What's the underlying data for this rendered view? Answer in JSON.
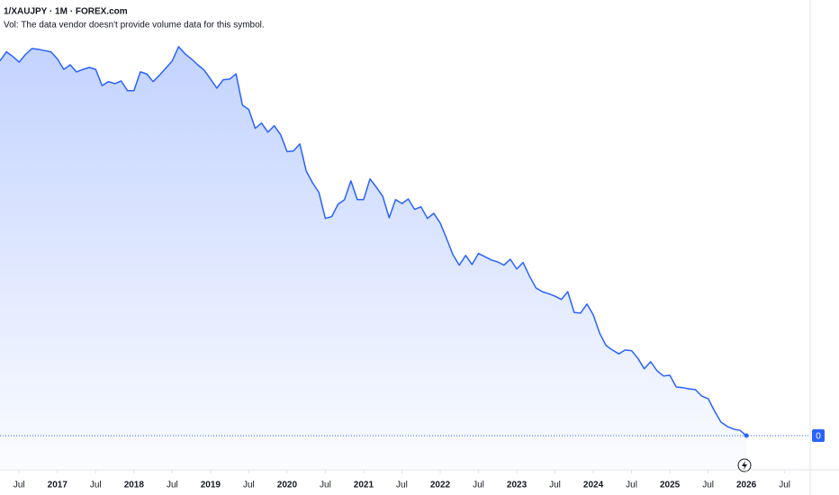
{
  "chart_data": {
    "type": "area",
    "title": "1/XAUJPY · 1M · FOREX.com",
    "subtitle": "Vol: The data vendor doesn't provide volume data for this symbol.",
    "color": "#2962ff",
    "x": [
      "2016-04",
      "2016-05",
      "2016-06",
      "2016-07",
      "2016-08",
      "2016-09",
      "2016-10",
      "2016-11",
      "2016-12",
      "2017-01",
      "2017-02",
      "2017-03",
      "2017-04",
      "2017-05",
      "2017-06",
      "2017-07",
      "2017-08",
      "2017-09",
      "2017-10",
      "2017-11",
      "2017-12",
      "2018-01",
      "2018-02",
      "2018-03",
      "2018-04",
      "2018-05",
      "2018-06",
      "2018-07",
      "2018-08",
      "2018-09",
      "2018-10",
      "2018-11",
      "2018-12",
      "2019-01",
      "2019-02",
      "2019-03",
      "2019-04",
      "2019-05",
      "2019-06",
      "2019-07",
      "2019-08",
      "2019-09",
      "2019-10",
      "2019-11",
      "2019-12",
      "2020-01",
      "2020-02",
      "2020-03",
      "2020-04",
      "2020-05",
      "2020-06",
      "2020-07",
      "2020-08",
      "2020-09",
      "2020-10",
      "2020-11",
      "2020-12",
      "2021-01",
      "2021-02",
      "2021-03",
      "2021-04",
      "2021-05",
      "2021-06",
      "2021-07",
      "2021-08",
      "2021-09",
      "2021-10",
      "2021-11",
      "2021-12",
      "2022-01",
      "2022-02",
      "2022-03",
      "2022-04",
      "2022-05",
      "2022-06",
      "2022-07",
      "2022-08",
      "2022-09",
      "2022-10",
      "2022-11",
      "2022-12",
      "2023-01",
      "2023-02",
      "2023-03",
      "2023-04",
      "2023-05",
      "2023-06",
      "2023-07",
      "2023-08",
      "2023-09",
      "2023-10",
      "2023-11",
      "2023-12",
      "2024-01",
      "2024-02",
      "2024-03",
      "2024-04",
      "2024-05",
      "2024-06",
      "2024-07",
      "2024-08",
      "2024-09",
      "2024-10",
      "2024-11",
      "2024-12",
      "2025-01",
      "2025-02",
      "2025-03",
      "2025-04",
      "2025-05",
      "2025-06",
      "2025-07",
      "2025-08",
      "2025-09",
      "2025-10",
      "2025-11",
      "2025-12",
      "2026-01"
    ],
    "values": [
      7.28e-06,
      7.42e-06,
      7.35e-06,
      7.26e-06,
      7.38e-06,
      7.47e-06,
      7.46e-06,
      7.44e-06,
      7.42e-06,
      7.31e-06,
      7.15e-06,
      7.22e-06,
      7.11e-06,
      7.15e-06,
      7.18e-06,
      7.15e-06,
      6.9e-06,
      6.96e-06,
      6.93e-06,
      6.97e-06,
      6.82e-06,
      6.82e-06,
      7.11e-06,
      7.08e-06,
      6.96e-06,
      7.06e-06,
      7.17e-06,
      7.28e-06,
      7.5e-06,
      7.39e-06,
      7.31e-06,
      7.22e-06,
      7.14e-06,
      7e-06,
      6.86e-06,
      6.99e-06,
      7e-06,
      7.08e-06,
      6.6e-06,
      6.53e-06,
      6.24e-06,
      6.32e-06,
      6.18e-06,
      6.28e-06,
      6.14e-06,
      5.88e-06,
      5.89e-06,
      6e-06,
      5.58e-06,
      5.4e-06,
      5.25e-06,
      4.85e-06,
      4.88e-06,
      5.07e-06,
      5.14e-06,
      5.43e-06,
      5.14e-06,
      5.14e-06,
      5.46e-06,
      5.33e-06,
      5.19e-06,
      4.86e-06,
      5.14e-06,
      5.08e-06,
      5.15e-06,
      4.99e-06,
      5.03e-06,
      4.85e-06,
      4.93e-06,
      4.78e-06,
      4.54e-06,
      4.29e-06,
      4.13e-06,
      4.28e-06,
      4.14e-06,
      4.31e-06,
      4.26e-06,
      4.21e-06,
      4.18e-06,
      4.13e-06,
      4.22e-06,
      4.07e-06,
      4.17e-06,
      3.96e-06,
      3.78e-06,
      3.72e-06,
      3.69e-06,
      3.65e-06,
      3.6e-06,
      3.72e-06,
      3.4e-06,
      3.39e-06,
      3.53e-06,
      3.36e-06,
      3.08e-06,
      2.89e-06,
      2.82e-06,
      2.76e-06,
      2.82e-06,
      2.81e-06,
      2.69e-06,
      2.53e-06,
      2.64e-06,
      2.5e-06,
      2.42e-06,
      2.43e-06,
      2.25e-06,
      2.24e-06,
      2.22e-06,
      2.21e-06,
      2.11e-06,
      2.07e-06,
      1.88e-06,
      1.71e-06,
      1.64e-06,
      1.6e-06,
      1.58e-06,
      1.5e-06
    ],
    "xlim": [
      "2016-04",
      "2026-11"
    ],
    "xticks": [
      {
        "value": "2016-07",
        "label": "Jul"
      },
      {
        "value": "2017-01",
        "label": "2017"
      },
      {
        "value": "2017-07",
        "label": "Jul"
      },
      {
        "value": "2018-01",
        "label": "2018"
      },
      {
        "value": "2018-07",
        "label": "Jul"
      },
      {
        "value": "2019-01",
        "label": "2019"
      },
      {
        "value": "2019-07",
        "label": "Jul"
      },
      {
        "value": "2020-01",
        "label": "2020"
      },
      {
        "value": "2020-07",
        "label": "Jul"
      },
      {
        "value": "2021-01",
        "label": "2021"
      },
      {
        "value": "2021-07",
        "label": "Jul"
      },
      {
        "value": "2022-01",
        "label": "2022"
      },
      {
        "value": "2022-07",
        "label": "Jul"
      },
      {
        "value": "2023-01",
        "label": "2023"
      },
      {
        "value": "2023-07",
        "label": "Jul"
      },
      {
        "value": "2024-01",
        "label": "2024"
      },
      {
        "value": "2024-07",
        "label": "Jul"
      },
      {
        "value": "2025-01",
        "label": "2025"
      },
      {
        "value": "2025-07",
        "label": "Jul"
      },
      {
        "value": "2026-01",
        "label": "2026"
      },
      {
        "value": "2026-07",
        "label": "Jul"
      }
    ],
    "ylim": [
      1e-06,
      8.22e-06
    ],
    "yticks": [
      {
        "value": 1.5e-06,
        "label": "0"
      }
    ]
  }
}
